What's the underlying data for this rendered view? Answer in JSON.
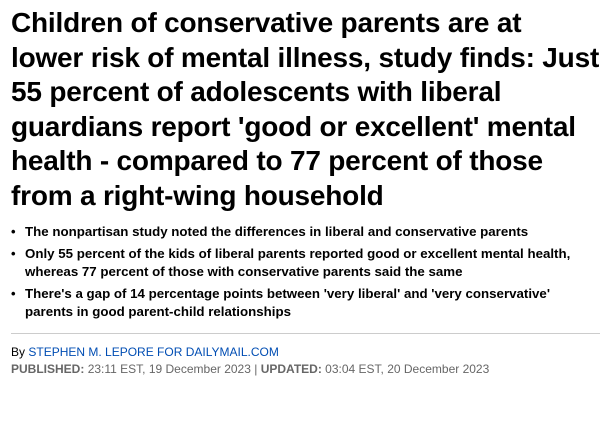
{
  "article": {
    "headline": "Children of conservative parents are at lower risk of mental illness, study finds: Just 55 percent of adolescents with liberal guardians report 'good or excellent' mental health - compared to 77 percent of those from a right-wing household",
    "bullets": [
      "The nonpartisan study noted the differences in liberal and conservative parents",
      "Only 55 percent of the kids of liberal parents reported good or excellent mental health, whereas 77 percent of those with conservative parents said the same",
      "There's a gap of 14 percentage points between 'very liberal' and 'very conservative' parents in good parent-child relationships"
    ],
    "bullet_symbol": "•",
    "byline_prefix": "By",
    "author": "STEPHEN M. LEPORE FOR DAILYMAIL.COM",
    "published_label": "PUBLISHED:",
    "published_value": "23:11 EST, 19 December 2023",
    "separator": "|",
    "updated_label": "UPDATED:",
    "updated_value": "03:04 EST, 20 December 2023"
  },
  "colors": {
    "link": "#004db3",
    "meta_text": "#666666",
    "divider": "#cccccc"
  }
}
